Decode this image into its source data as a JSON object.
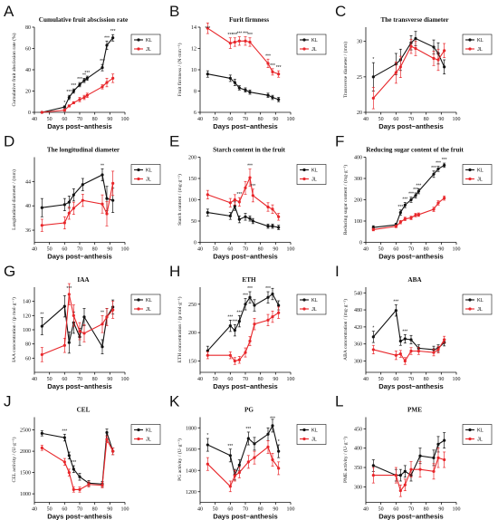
{
  "colors": {
    "KL": "#111111",
    "JL": "#e8262a"
  },
  "chart_data": [
    {
      "id": "A",
      "type": "line",
      "title": "Cumulative fruit abscission rate",
      "xlabel": "Days post−anthesis",
      "ylabel": "Cumulative fruit abscission rate (%)",
      "xlim": [
        40,
        100
      ],
      "xticks": [
        40,
        50,
        60,
        70,
        80,
        90,
        100
      ],
      "ylim": [
        0,
        80
      ],
      "yticks": [
        0,
        20,
        40,
        60,
        80
      ],
      "x": [
        45,
        60,
        63,
        66,
        70,
        73,
        75,
        85,
        88,
        92
      ],
      "series": [
        {
          "name": "KL",
          "values": [
            0,
            5,
            14,
            20,
            26,
            30,
            32,
            42,
            63,
            70
          ],
          "err": [
            0,
            1,
            2,
            2,
            2,
            2,
            2,
            3,
            4,
            3
          ]
        },
        {
          "name": "JL",
          "values": [
            0,
            2,
            6,
            9,
            12,
            14,
            16,
            24,
            28,
            32
          ],
          "err": [
            0,
            1,
            1,
            1,
            2,
            2,
            2,
            2,
            4,
            4
          ]
        }
      ],
      "significance": [
        "",
        "*",
        "***",
        "***",
        "***",
        "**",
        "***",
        "***",
        "***",
        "***"
      ]
    },
    {
      "id": "B",
      "type": "line",
      "title": "Furit firmness",
      "xlabel": "Days post−anthesis",
      "ylabel": "Fruit firmness / (N·mm⁻¹)",
      "xlim": [
        40,
        100
      ],
      "xticks": [
        40,
        50,
        60,
        70,
        80,
        90,
        100
      ],
      "ylim": [
        6,
        14
      ],
      "yticks": [
        6,
        8,
        10,
        12,
        14
      ],
      "x": [
        45,
        60,
        63,
        66,
        70,
        73,
        85,
        88,
        92
      ],
      "series": [
        {
          "name": "KL",
          "values": [
            9.6,
            9.2,
            8.8,
            8.3,
            8.1,
            7.9,
            7.6,
            7.4,
            7.2
          ],
          "err": [
            0.3,
            0.3,
            0.3,
            0.2,
            0.2,
            0.2,
            0.2,
            0.2,
            0.2
          ]
        },
        {
          "name": "JL",
          "values": [
            13.9,
            12.5,
            12.6,
            12.7,
            12.7,
            12.6,
            10.6,
            9.8,
            9.6
          ],
          "err": [
            0.5,
            0.5,
            0.4,
            0.4,
            0.4,
            0.4,
            0.4,
            0.3,
            0.3
          ]
        }
      ],
      "significance": [
        "***",
        "***",
        "***",
        "***",
        "***",
        "***",
        "***",
        "***",
        "***"
      ]
    },
    {
      "id": "C",
      "type": "line",
      "title": "The transverse diameter",
      "xlabel": "Days post−anthesis",
      "ylabel": "Transverse diameter / (mm)",
      "xlim": [
        40,
        100
      ],
      "xticks": [
        40,
        50,
        60,
        70,
        80,
        90,
        100
      ],
      "ylim": [
        20,
        32
      ],
      "yticks": [
        20,
        25,
        30
      ],
      "x": [
        45,
        60,
        63,
        70,
        73,
        85,
        88,
        92
      ],
      "series": [
        {
          "name": "KL",
          "values": [
            25,
            26.8,
            27.4,
            29.8,
            30.4,
            29.2,
            28.3,
            26.4
          ],
          "err": [
            2,
            1.5,
            1.5,
            1,
            1,
            1,
            1.5,
            1
          ]
        },
        {
          "name": "JL",
          "values": [
            22,
            25.6,
            26.4,
            29.3,
            29,
            27.6,
            27.4,
            28.7
          ],
          "err": [
            1.5,
            1.5,
            1.5,
            1,
            1,
            1,
            1.5,
            1
          ]
        }
      ],
      "significance": [
        "*",
        "",
        "",
        "",
        "",
        "",
        "",
        ""
      ]
    },
    {
      "id": "D",
      "type": "line",
      "title": "The longitudinal diameter",
      "xlabel": "Days post−anthesis",
      "ylabel": "Longitudinal diameter / (mm)",
      "xlim": [
        40,
        100
      ],
      "xticks": [
        40,
        50,
        60,
        70,
        80,
        90,
        100
      ],
      "ylim": [
        34,
        48
      ],
      "yticks": [
        36,
        40,
        44
      ],
      "x": [
        45,
        60,
        63,
        66,
        72,
        85,
        88,
        92
      ],
      "series": [
        {
          "name": "KL",
          "values": [
            39.7,
            40.2,
            40.6,
            41.8,
            43.5,
            45.1,
            41.2,
            40.9
          ],
          "err": [
            1.5,
            1,
            1,
            1,
            1,
            1,
            2,
            2
          ]
        },
        {
          "name": "JL",
          "values": [
            36.8,
            37.2,
            38.8,
            39.6,
            40.9,
            40.3,
            38.7,
            43.7
          ],
          "err": [
            1,
            1,
            1,
            1,
            1,
            1.5,
            2,
            2
          ]
        }
      ],
      "significance": [
        "",
        "",
        "",
        "",
        "",
        "**",
        "",
        ""
      ]
    },
    {
      "id": "E",
      "type": "line",
      "title": "Starch content in the fruit",
      "xlabel": "Days post−anthesis",
      "ylabel": "Starch content / (mg·g⁻¹)",
      "xlim": [
        40,
        100
      ],
      "xticks": [
        40,
        50,
        60,
        70,
        80,
        90,
        100
      ],
      "ylim": [
        0,
        200
      ],
      "yticks": [
        0,
        50,
        100,
        150,
        200
      ],
      "x": [
        45,
        60,
        63,
        66,
        70,
        73,
        75,
        85,
        88,
        92
      ],
      "series": [
        {
          "name": "KL",
          "values": [
            70,
            62,
            85,
            54,
            60,
            56,
            50,
            38,
            38,
            35
          ],
          "err": [
            8,
            8,
            10,
            8,
            8,
            6,
            6,
            5,
            5,
            5
          ]
        },
        {
          "name": "JL",
          "values": [
            112,
            93,
            100,
            95,
            128,
            152,
            110,
            83,
            78,
            60
          ],
          "err": [
            10,
            10,
            12,
            10,
            15,
            20,
            15,
            10,
            10,
            8
          ]
        }
      ],
      "significance": [
        "",
        "",
        "",
        "***",
        "",
        "***",
        "***",
        "",
        "",
        ""
      ]
    },
    {
      "id": "F",
      "type": "line",
      "title": "Reducing sugar content of the fruit",
      "xlabel": "Days post−anthesis",
      "ylabel": "Reducing sugar content / (mg·g⁻¹)",
      "xlim": [
        40,
        100
      ],
      "xticks": [
        40,
        50,
        60,
        70,
        80,
        90,
        100
      ],
      "ylim": [
        0,
        400
      ],
      "yticks": [
        0,
        100,
        200,
        300,
        400
      ],
      "x": [
        45,
        60,
        63,
        66,
        70,
        73,
        75,
        85,
        88,
        92
      ],
      "series": [
        {
          "name": "KL",
          "values": [
            70,
            82,
            140,
            175,
            200,
            220,
            240,
            320,
            345,
            362
          ],
          "err": [
            8,
            8,
            12,
            12,
            12,
            12,
            12,
            15,
            12,
            10
          ]
        },
        {
          "name": "JL",
          "values": [
            60,
            75,
            95,
            110,
            115,
            128,
            130,
            155,
            185,
            208
          ],
          "err": [
            6,
            6,
            8,
            8,
            8,
            8,
            8,
            10,
            10,
            10
          ]
        }
      ],
      "significance": [
        "",
        "",
        "***",
        "***",
        "***",
        "***",
        "***",
        "***",
        "***",
        "***"
      ]
    },
    {
      "id": "G",
      "type": "line",
      "title": "IAA",
      "xlabel": "Days post−anthesis",
      "ylabel": "IAA concentration / (p mol·g⁻¹)",
      "xlim": [
        40,
        100
      ],
      "xticks": [
        40,
        50,
        60,
        70,
        80,
        90,
        100
      ],
      "ylim": [
        40,
        160
      ],
      "yticks": [
        60,
        80,
        100,
        120,
        140
      ],
      "x": [
        45,
        60,
        63,
        66,
        70,
        73,
        85,
        88,
        92
      ],
      "series": [
        {
          "name": "KL",
          "values": [
            105,
            133,
            82,
            110,
            90,
            118,
            76,
            118,
            132
          ],
          "err": [
            12,
            15,
            15,
            15,
            12,
            12,
            10,
            12,
            10
          ]
        },
        {
          "name": "JL",
          "values": [
            65,
            78,
            150,
            120,
            98,
            95,
            108,
            118,
            128
          ],
          "err": [
            10,
            10,
            15,
            15,
            12,
            12,
            12,
            12,
            12
          ]
        }
      ],
      "significance": [
        "**",
        "",
        "***",
        "",
        "",
        "",
        "**",
        "",
        ""
      ]
    },
    {
      "id": "H",
      "type": "line",
      "title": "ETH",
      "xlabel": "Days post−anthesis",
      "ylabel": "ETH concentration / (p mol·g⁻¹)",
      "xlim": [
        40,
        100
      ],
      "xticks": [
        40,
        50,
        60,
        70,
        80,
        90,
        100
      ],
      "ylim": [
        130,
        280
      ],
      "yticks": [
        150,
        200,
        250
      ],
      "x": [
        45,
        60,
        63,
        66,
        70,
        73,
        76,
        85,
        88,
        92
      ],
      "series": [
        {
          "name": "KL",
          "values": [
            168,
            212,
            204,
            220,
            250,
            262,
            248,
            262,
            268,
            248
          ],
          "err": [
            8,
            10,
            10,
            10,
            10,
            10,
            10,
            10,
            10,
            8
          ]
        },
        {
          "name": "JL",
          "values": [
            160,
            160,
            150,
            152,
            165,
            185,
            215,
            222,
            228,
            235
          ],
          "err": [
            6,
            6,
            6,
            6,
            8,
            8,
            10,
            10,
            10,
            10
          ]
        }
      ],
      "significance": [
        "",
        "***",
        "***",
        "***",
        "***",
        "***",
        "",
        "***",
        "",
        ""
      ]
    },
    {
      "id": "I",
      "type": "line",
      "title": "ABA",
      "xlabel": "Days post−anthesis",
      "ylabel": "ABA concentration / (mg·g⁻¹)",
      "xlim": [
        40,
        100
      ],
      "xticks": [
        40,
        50,
        60,
        70,
        80,
        90,
        100
      ],
      "ylim": [
        260,
        560
      ],
      "yticks": [
        300,
        360,
        420,
        480,
        540
      ],
      "x": [
        45,
        60,
        63,
        66,
        70,
        75,
        85,
        88,
        92
      ],
      "series": [
        {
          "name": "KL",
          "values": [
            385,
            478,
            370,
            378,
            375,
            345,
            340,
            345,
            365
          ],
          "err": [
            20,
            20,
            15,
            15,
            15,
            12,
            12,
            12,
            12
          ]
        },
        {
          "name": "JL",
          "values": [
            340,
            320,
            325,
            300,
            335,
            335,
            330,
            340,
            375
          ],
          "err": [
            15,
            15,
            12,
            12,
            12,
            12,
            12,
            12,
            12
          ]
        }
      ],
      "significance": [
        "*",
        "***",
        "",
        "***",
        "",
        "",
        "",
        "",
        ""
      ]
    },
    {
      "id": "J",
      "type": "line",
      "title": "CEL",
      "xlabel": "Days post−anthesis",
      "ylabel": "CEL activity / (U·g⁻¹)",
      "xlim": [
        40,
        100
      ],
      "xticks": [
        40,
        50,
        60,
        70,
        80,
        90,
        100
      ],
      "ylim": [
        800,
        2800
      ],
      "yticks": [
        1000,
        1500,
        2000,
        2500
      ],
      "x": [
        45,
        60,
        63,
        66,
        70,
        76,
        85,
        88,
        92
      ],
      "series": [
        {
          "name": "KL",
          "values": [
            2420,
            2320,
            1900,
            1580,
            1400,
            1250,
            1230,
            2440,
            2000
          ],
          "err": [
            60,
            80,
            80,
            80,
            80,
            60,
            60,
            80,
            80
          ]
        },
        {
          "name": "JL",
          "values": [
            2080,
            1750,
            1500,
            1100,
            1100,
            1220,
            1200,
            2280,
            2000
          ],
          "err": [
            60,
            80,
            80,
            60,
            60,
            60,
            60,
            80,
            80
          ]
        }
      ],
      "significance": [
        "",
        "***",
        "",
        "***",
        "",
        "",
        "",
        "",
        ""
      ]
    },
    {
      "id": "K",
      "type": "line",
      "title": "PG",
      "xlabel": "Days post−anthesis",
      "ylabel": "PG activity / (U·g⁻¹)",
      "xlim": [
        40,
        100
      ],
      "xticks": [
        40,
        50,
        60,
        70,
        80,
        90,
        100
      ],
      "ylim": [
        1100,
        1900
      ],
      "yticks": [
        1200,
        1400,
        1600,
        1800
      ],
      "x": [
        45,
        60,
        63,
        66,
        72,
        76,
        85,
        88,
        92
      ],
      "series": [
        {
          "name": "KL",
          "values": [
            1640,
            1540,
            1360,
            1450,
            1700,
            1650,
            1740,
            1820,
            1580
          ],
          "err": [
            60,
            60,
            50,
            50,
            60,
            60,
            60,
            60,
            60
          ]
        },
        {
          "name": "JL",
          "values": [
            1460,
            1250,
            1350,
            1380,
            1480,
            1520,
            1620,
            1500,
            1420
          ],
          "err": [
            60,
            50,
            50,
            50,
            60,
            60,
            60,
            60,
            60
          ]
        }
      ],
      "significance": [
        "*",
        "***",
        "",
        "",
        "***",
        "",
        "",
        "***",
        "*"
      ]
    },
    {
      "id": "L",
      "type": "line",
      "title": "PME",
      "xlabel": "Days post−anthesis",
      "ylabel": "PME activity / (U·g⁻¹)",
      "xlim": [
        40,
        100
      ],
      "xticks": [
        40,
        50,
        60,
        70,
        80,
        90,
        100
      ],
      "ylim": [
        260,
        480
      ],
      "yticks": [
        300,
        350,
        400,
        450
      ],
      "x": [
        45,
        60,
        63,
        66,
        70,
        76,
        85,
        88,
        92
      ],
      "series": [
        {
          "name": "KL",
          "values": [
            355,
            330,
            330,
            340,
            330,
            380,
            375,
            410,
            420
          ],
          "err": [
            15,
            15,
            15,
            15,
            15,
            20,
            20,
            20,
            20
          ]
        },
        {
          "name": "JL",
          "values": [
            330,
            330,
            290,
            305,
            345,
            345,
            340,
            375,
            370
          ],
          "err": [
            20,
            20,
            15,
            15,
            20,
            20,
            20,
            25,
            20
          ]
        }
      ],
      "significance": [
        "",
        "",
        "",
        "",
        "",
        "",
        "",
        "",
        ""
      ]
    }
  ]
}
